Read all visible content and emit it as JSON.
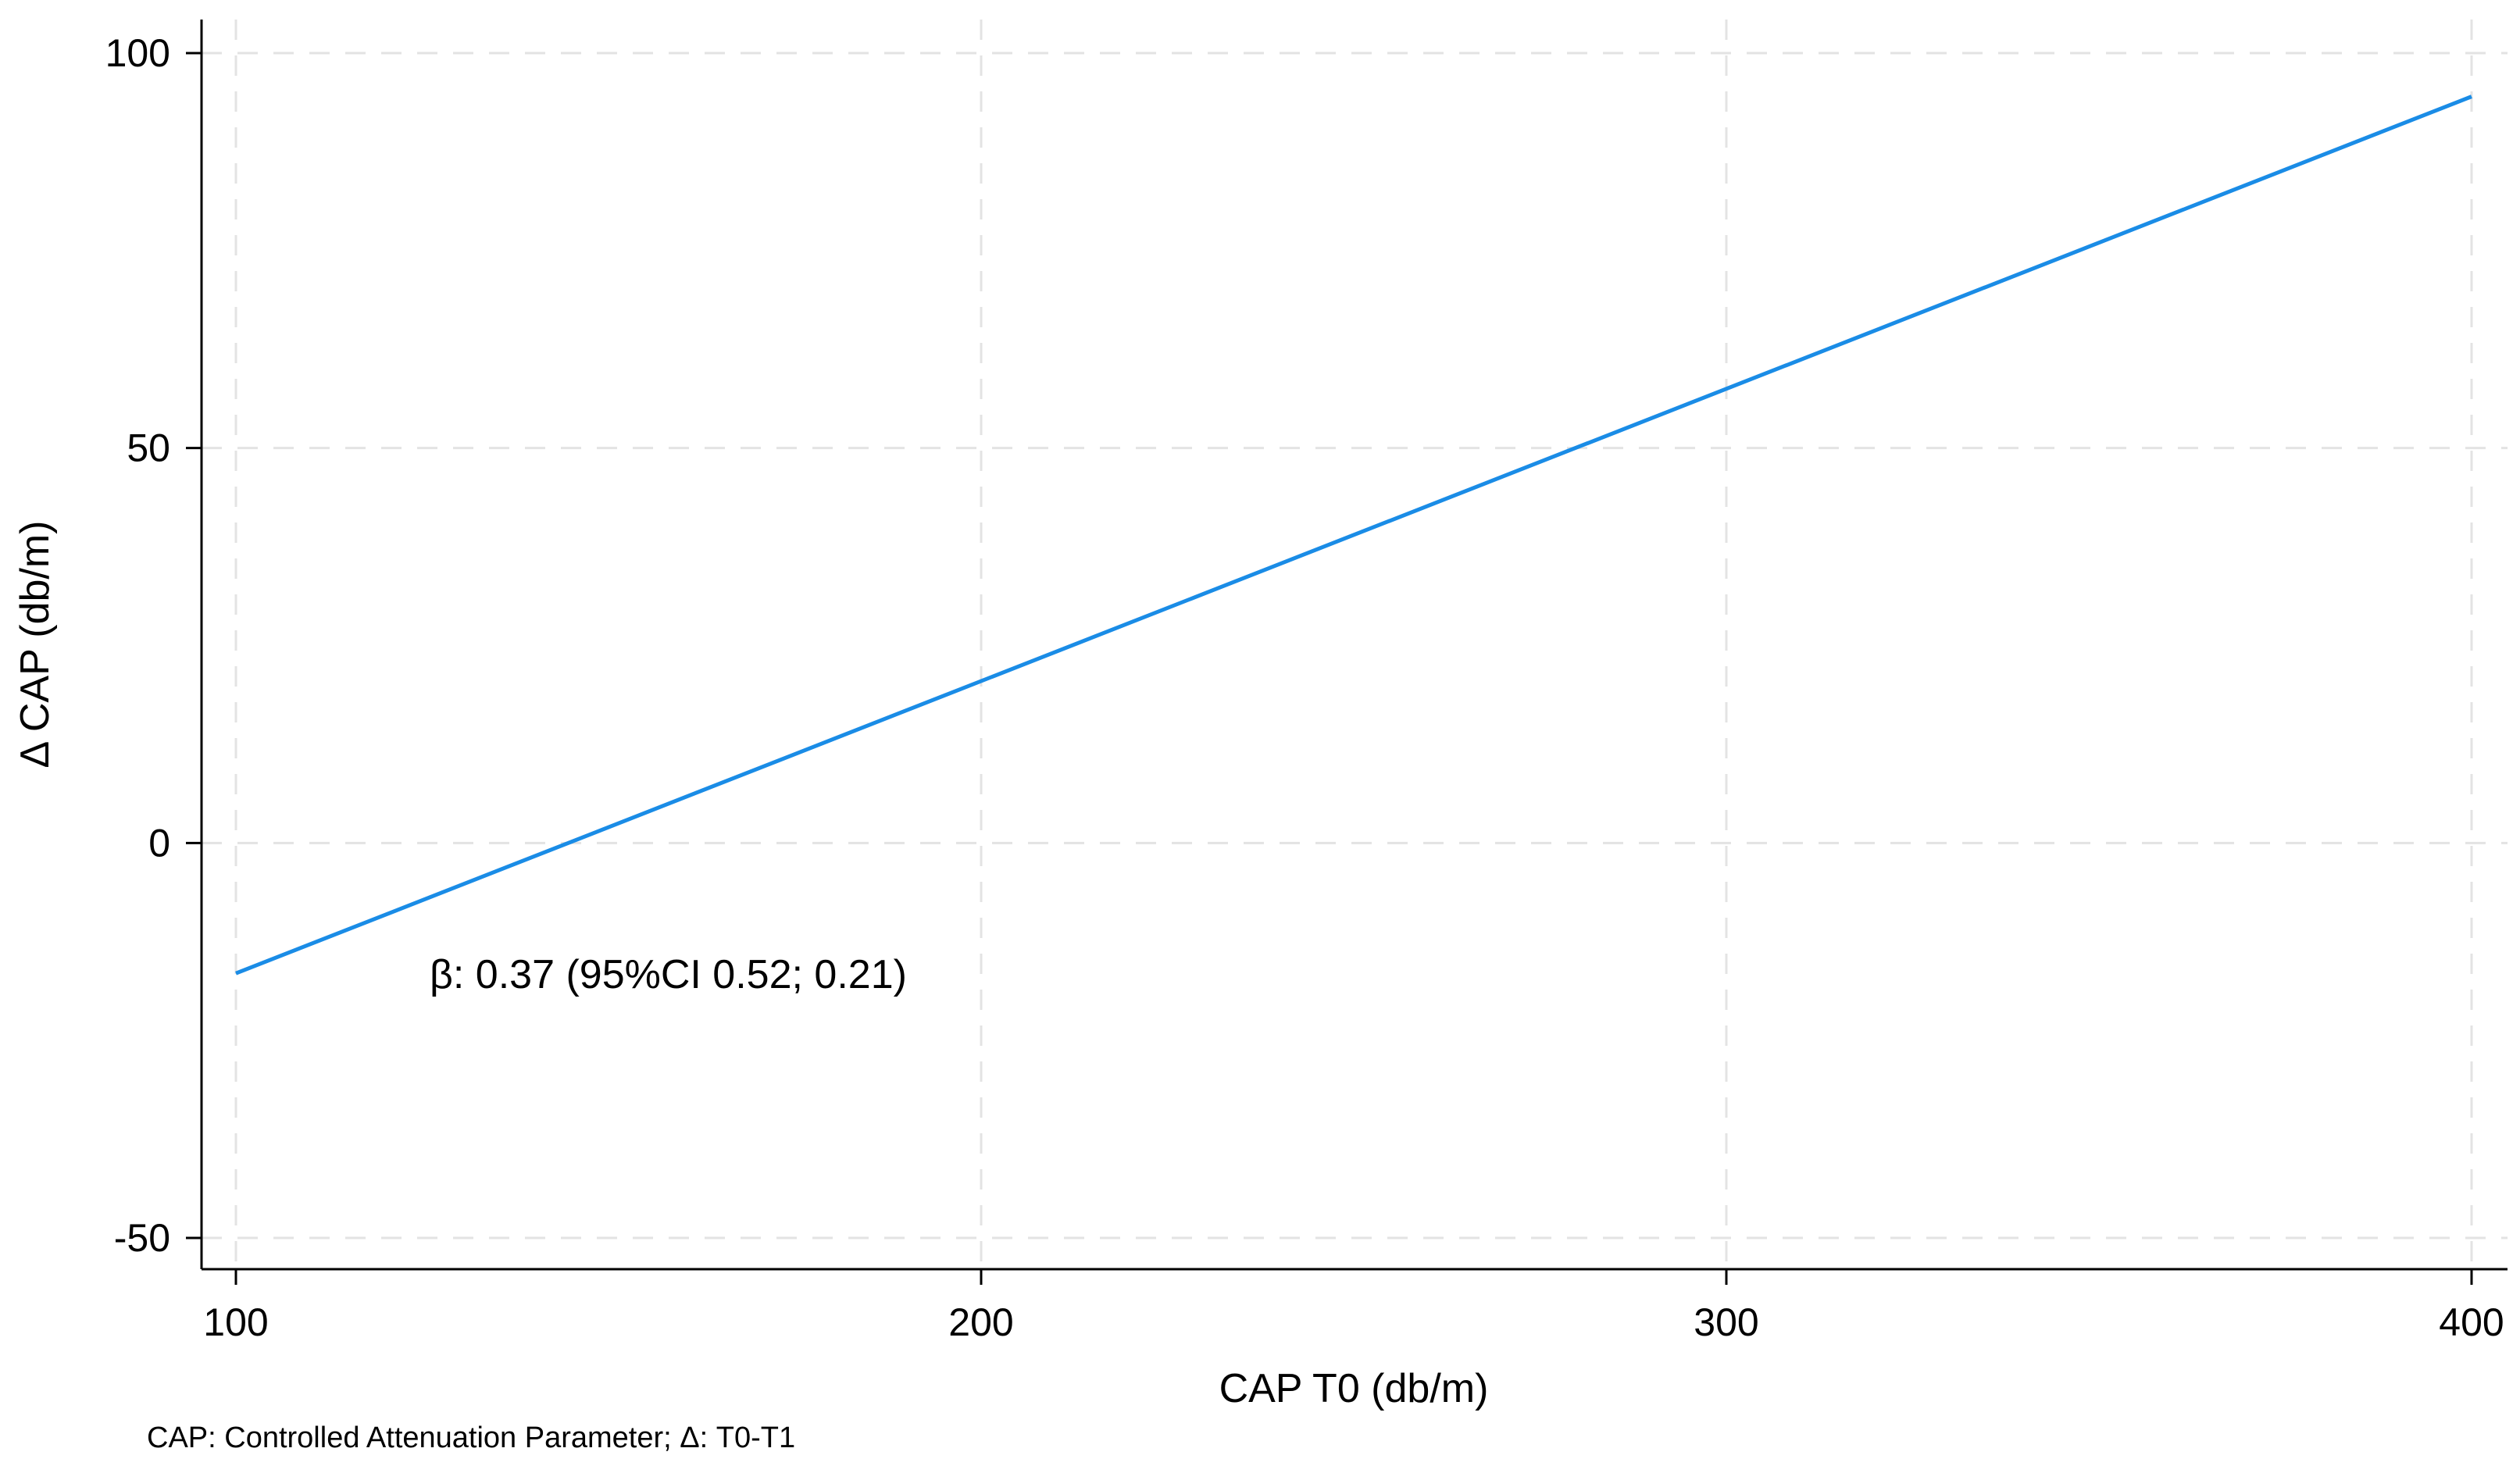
{
  "chart_data": {
    "type": "line",
    "xlabel": "CAP T0 (db/m)",
    "ylabel": "Δ CAP (db/m)",
    "xlim": [
      100,
      400
    ],
    "ylim": [
      -50,
      100
    ],
    "x_ticks": [
      100,
      200,
      300,
      400
    ],
    "y_ticks": [
      -50,
      0,
      50,
      100
    ],
    "x_tick_labels": [
      "100",
      "200",
      "300",
      "400"
    ],
    "y_tick_labels": [
      "-50",
      "0",
      "50",
      "100"
    ],
    "grid": true,
    "series": [
      {
        "x": [
          100,
          400
        ],
        "y": [
          -16.5,
          94.5
        ],
        "color": "#1a8ce6"
      }
    ],
    "annotation": "β: 0.37 (95%CI 0.52; 0.21)",
    "footnote": "CAP: Controlled Attenuation Parameter; Δ: T0-T1"
  }
}
